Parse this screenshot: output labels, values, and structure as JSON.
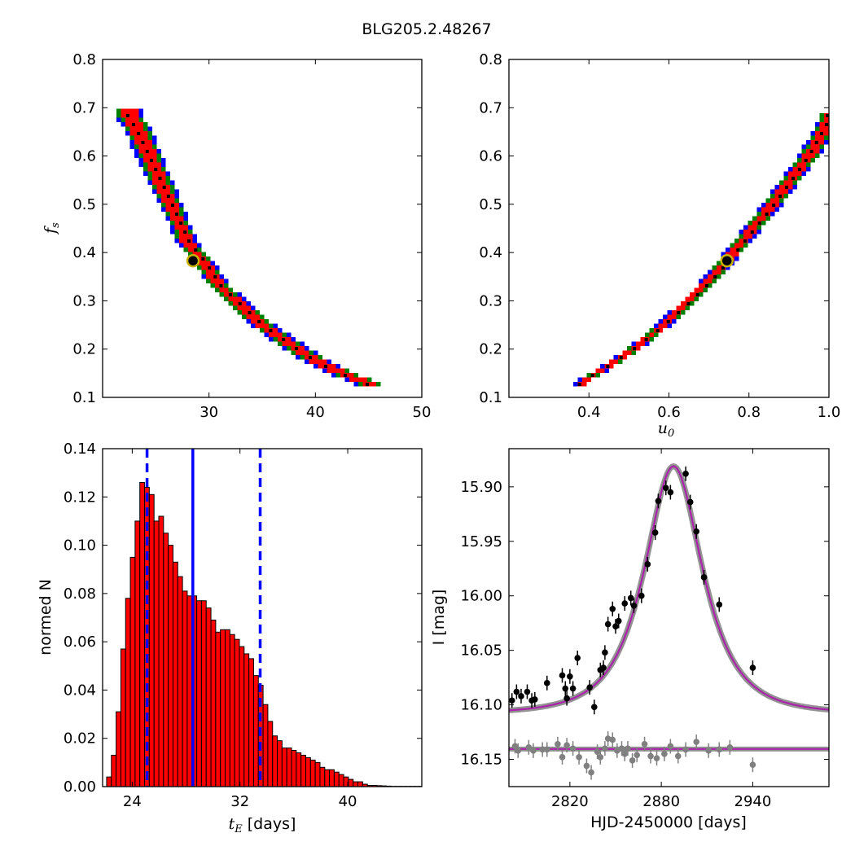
{
  "title": "BLG205.2.48267",
  "colors": {
    "outer_region": "#0000ff",
    "mid_region": "#008000",
    "inner_region": "#ff0000",
    "samples": "#000000",
    "best_marker": "#c8b400",
    "hist_bar": "#ff0000",
    "model_curve": "#aa22aa",
    "model_band": "#808080",
    "residual": "#808080"
  },
  "chart_data": [
    {
      "id": "fs_vs_tE",
      "type": "heatmap",
      "xlabel": "",
      "ylabel": "f_s",
      "xlim": [
        20,
        50
      ],
      "ylim": [
        0.1,
        0.8
      ],
      "xticks": [
        "30",
        "40",
        "50"
      ],
      "yticks": [
        "0.1",
        "0.2",
        "0.3",
        "0.4",
        "0.5",
        "0.6",
        "0.7",
        "0.8"
      ],
      "ridge": [
        [
          22.5,
          0.68
        ],
        [
          23.2,
          0.66
        ],
        [
          24.0,
          0.62
        ],
        [
          25.0,
          0.57
        ],
        [
          26.0,
          0.52
        ],
        [
          27.0,
          0.47
        ],
        [
          28.0,
          0.42
        ],
        [
          29.5,
          0.38
        ],
        [
          31.0,
          0.33
        ],
        [
          33.0,
          0.29
        ],
        [
          35.0,
          0.25
        ],
        [
          37.0,
          0.22
        ],
        [
          39.0,
          0.19
        ],
        [
          41.0,
          0.165
        ],
        [
          43.0,
          0.145
        ],
        [
          45.0,
          0.13
        ]
      ],
      "best_fit": [
        28.5,
        0.383
      ]
    },
    {
      "id": "fs_vs_u0",
      "type": "heatmap",
      "xlabel": "u_0",
      "ylabel": "",
      "xlim": [
        0.2,
        1.0
      ],
      "ylim": [
        0.1,
        0.8
      ],
      "xticks": [
        "0.4",
        "0.6",
        "0.8",
        "1.0"
      ],
      "yticks": [
        "0.1",
        "0.2",
        "0.3",
        "0.4",
        "0.5",
        "0.6",
        "0.7",
        "0.8"
      ],
      "ridge": [
        [
          0.38,
          0.13
        ],
        [
          0.45,
          0.165
        ],
        [
          0.52,
          0.205
        ],
        [
          0.58,
          0.245
        ],
        [
          0.64,
          0.29
        ],
        [
          0.7,
          0.34
        ],
        [
          0.745,
          0.383
        ],
        [
          0.8,
          0.44
        ],
        [
          0.85,
          0.49
        ],
        [
          0.9,
          0.545
        ],
        [
          0.95,
          0.6
        ],
        [
          1.0,
          0.67
        ]
      ],
      "best_fit": [
        0.745,
        0.383
      ]
    },
    {
      "id": "tE_histogram",
      "type": "bar",
      "xlabel": "t_E [days]",
      "ylabel": "normed N",
      "xlim": [
        21.8,
        45.5
      ],
      "ylim": [
        0,
        0.14
      ],
      "xticks": [
        "24",
        "32",
        "40"
      ],
      "yticks": [
        "0.00",
        "0.02",
        "0.04",
        "0.06",
        "0.08",
        "0.10",
        "0.12",
        "0.14"
      ],
      "bin_start": 22.1,
      "bin_width": 0.352,
      "values": [
        0.004,
        0.013,
        0.031,
        0.057,
        0.078,
        0.095,
        0.11,
        0.126,
        0.124,
        0.121,
        0.11,
        0.112,
        0.105,
        0.1,
        0.093,
        0.087,
        0.081,
        0.079,
        0.079,
        0.077,
        0.077,
        0.074,
        0.069,
        0.064,
        0.065,
        0.065,
        0.063,
        0.061,
        0.058,
        0.055,
        0.053,
        0.046,
        0.042,
        0.034,
        0.027,
        0.021,
        0.019,
        0.016,
        0.016,
        0.015,
        0.014,
        0.013,
        0.012,
        0.011,
        0.01,
        0.008,
        0.007,
        0.007,
        0.006,
        0.005,
        0.004,
        0.003,
        0.002,
        0.002,
        0.001,
        0.0005,
        0.0005,
        0.0004,
        0.0003,
        0.0002,
        0.0001,
        0.0001,
        0.0001,
        0.0001,
        0.0001,
        0.0001,
        0.0001
      ],
      "median": 28.5,
      "lower": 25.1,
      "upper": 33.5
    },
    {
      "id": "light_curve",
      "type": "scatter",
      "xlabel": "HJD-2450000 [days]",
      "ylabel": "I [mag]",
      "xlim": [
        2780,
        2990
      ],
      "ylim": [
        16.175,
        15.865
      ],
      "xticks": [
        "2820",
        "2880",
        "2940"
      ],
      "yticks": [
        "15.90",
        "15.95",
        "16.00",
        "16.05",
        "16.10",
        "16.15"
      ],
      "model": {
        "t0": 2888,
        "tE": 28.5,
        "u0": 0.745,
        "fs": 0.383,
        "base": 16.108
      },
      "data": [
        [
          2782,
          16.096
        ],
        [
          2785,
          16.088
        ],
        [
          2788,
          16.092
        ],
        [
          2792,
          16.088
        ],
        [
          2795,
          16.096
        ],
        [
          2797,
          16.095
        ],
        [
          2805,
          16.08
        ],
        [
          2815,
          16.073
        ],
        [
          2817,
          16.085
        ],
        [
          2818,
          16.094
        ],
        [
          2820,
          16.074
        ],
        [
          2822,
          16.085
        ],
        [
          2825,
          16.057
        ],
        [
          2833,
          16.084
        ],
        [
          2836,
          16.102
        ],
        [
          2840,
          16.068
        ],
        [
          2842,
          16.066
        ],
        [
          2843,
          16.052
        ],
        [
          2845,
          16.026
        ],
        [
          2848,
          16.012
        ],
        [
          2850,
          16.028
        ],
        [
          2852,
          16.023
        ],
        [
          2856,
          16.007
        ],
        [
          2860,
          16.002
        ],
        [
          2862,
          16.009
        ],
        [
          2867,
          16.0
        ],
        [
          2871,
          15.971
        ],
        [
          2876,
          15.942
        ],
        [
          2878,
          15.913
        ],
        [
          2883,
          15.901
        ],
        [
          2886,
          15.905
        ],
        [
          2896,
          15.888
        ],
        [
          2899,
          15.914
        ],
        [
          2903,
          15.941
        ],
        [
          2908,
          15.983
        ],
        [
          2918,
          16.008
        ],
        [
          2940,
          16.066
        ]
      ],
      "residuals": [
        [
          2784,
          16.138
        ],
        [
          2786,
          16.142
        ],
        [
          2793,
          16.139
        ],
        [
          2796,
          16.142
        ],
        [
          2802,
          16.141
        ],
        [
          2805,
          16.141
        ],
        [
          2812,
          16.136
        ],
        [
          2815,
          16.148
        ],
        [
          2818,
          16.137
        ],
        [
          2822,
          16.14
        ],
        [
          2826,
          16.148
        ],
        [
          2831,
          16.156
        ],
        [
          2834,
          16.162
        ],
        [
          2838,
          16.143
        ],
        [
          2840,
          16.148
        ],
        [
          2843,
          16.14
        ],
        [
          2845,
          16.131
        ],
        [
          2848,
          16.132
        ],
        [
          2851,
          16.142
        ],
        [
          2854,
          16.14
        ],
        [
          2856,
          16.145
        ],
        [
          2858,
          16.14
        ],
        [
          2861,
          16.151
        ],
        [
          2864,
          16.146
        ],
        [
          2869,
          16.136
        ],
        [
          2873,
          16.147
        ],
        [
          2877,
          16.149
        ],
        [
          2882,
          16.145
        ],
        [
          2886,
          16.138
        ],
        [
          2891,
          16.147
        ],
        [
          2896,
          16.141
        ],
        [
          2903,
          16.134
        ],
        [
          2911,
          16.142
        ],
        [
          2918,
          16.141
        ],
        [
          2925,
          16.139
        ],
        [
          2940,
          16.155
        ]
      ]
    }
  ]
}
